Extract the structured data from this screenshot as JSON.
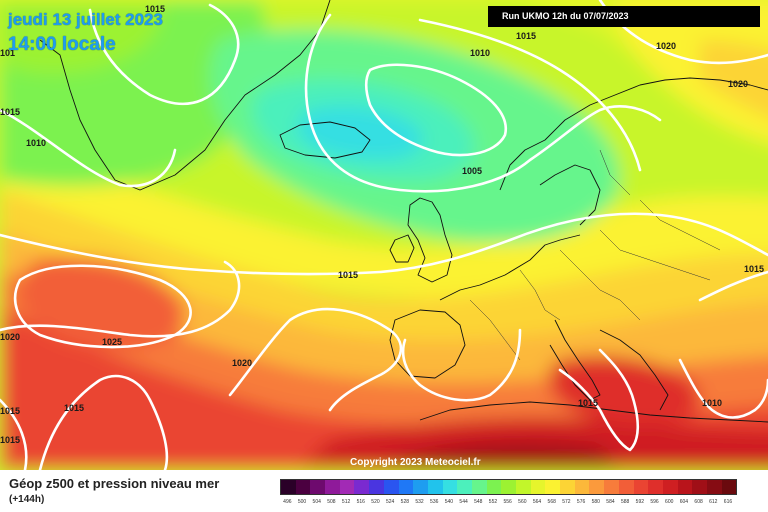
{
  "header": {
    "date": "jeudi 13 juillet 2023",
    "time": "14:00 locale",
    "run": "Run UKMO 12h du 07/07/2023",
    "copyright": "Copyright 2023 Meteociel.fr"
  },
  "footer": {
    "title": "Géop z500 et pression niveau mer",
    "lead": "(+144h)"
  },
  "legend": {
    "values": [
      "496",
      "500",
      "504",
      "508",
      "512",
      "516",
      "520",
      "524",
      "528",
      "532",
      "536",
      "540",
      "544",
      "548",
      "552",
      "556",
      "560",
      "564",
      "568",
      "572",
      "576",
      "580",
      "584",
      "588",
      "592",
      "596",
      "600",
      "604",
      "608",
      "612",
      "616"
    ],
    "colors": [
      "#2a0028",
      "#4b0040",
      "#6e0a6e",
      "#8f1a9a",
      "#a22ab5",
      "#7a2ad0",
      "#4a35e0",
      "#2a55f0",
      "#1f78f6",
      "#1e9df0",
      "#21c3ec",
      "#35dfe2",
      "#4cf0bc",
      "#66f58c",
      "#7cf250",
      "#9cf232",
      "#c2f62a",
      "#e6f52c",
      "#fbf231",
      "#fcd435",
      "#fcb83a",
      "#fb9a3c",
      "#f77c3b",
      "#f25e38",
      "#ea4432",
      "#df2f2b",
      "#cf1f22",
      "#b9141b",
      "#a00f17",
      "#860c13",
      "#6a0a0e"
    ]
  },
  "isobars": [
    {
      "name": "isobar-label-1015-top",
      "text": "1015"
    },
    {
      "name": "isobar-label-1015-norway",
      "text": "1015"
    },
    {
      "name": "isobar-label-1020-ne",
      "text": "1020"
    },
    {
      "name": "isobar-label-1010-mid",
      "text": "1010"
    },
    {
      "name": "isobar-label-1020-east",
      "text": "1020"
    },
    {
      "name": "isobar-label-1010-left",
      "text": "1010"
    },
    {
      "name": "isobar-label-1005",
      "text": "1005"
    },
    {
      "name": "isobar-label-1015-center",
      "text": "1015"
    },
    {
      "name": "isobar-label-1015-east",
      "text": "1015"
    },
    {
      "name": "isobar-label-1025",
      "text": "1025"
    },
    {
      "name": "isobar-label-1020-sw",
      "text": "1020"
    },
    {
      "name": "isobar-label-1015-mediterranean",
      "text": "1015"
    },
    {
      "name": "isobar-label-1010-se",
      "text": "1010"
    },
    {
      "name": "isobar-label-1015-atlantic",
      "text": "1015"
    },
    {
      "name": "isobar-label-1020-left",
      "text": "1020"
    },
    {
      "name": "isobar-label-1015-left-edge",
      "text": "1015"
    },
    {
      "name": "isobar-label-1015-left-edge-top",
      "text": "1015"
    },
    {
      "name": "isobar-label-1015-left-edge-bottom",
      "text": "1015"
    },
    {
      "name": "isobar-label-1010-left-top",
      "text": "101"
    }
  ]
}
